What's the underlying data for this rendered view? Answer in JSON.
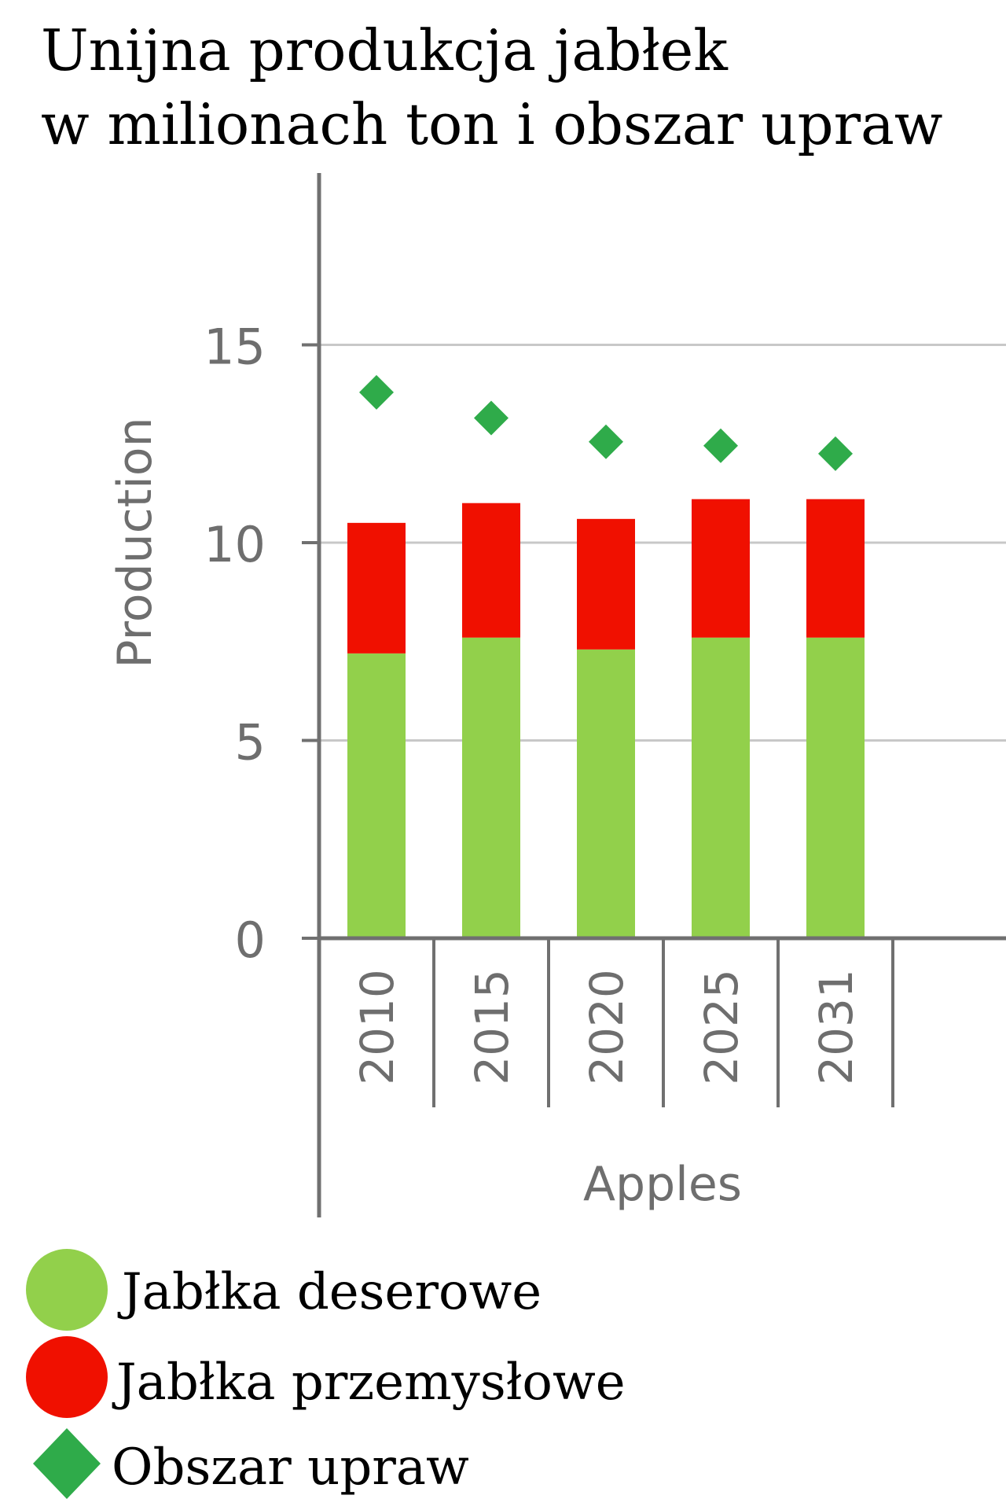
{
  "title_lines": [
    "Unijna produkcja jabłek",
    "w milionach ton i obszar upraw"
  ],
  "colors": {
    "dessert": "#92d04b",
    "industrial": "#f01000",
    "area": "#2fab4a",
    "axis": "#707070",
    "grid": "#c8c8c8",
    "tick_text": "#6e6e6e"
  },
  "chart_data": {
    "type": "bar",
    "stacked": true,
    "title": "Unijna produkcja jabłek w milionach ton i obszar upraw",
    "ylabel": "Production",
    "xlabel": "Apples",
    "categories": [
      "2010",
      "2015",
      "2020",
      "2025",
      "2031"
    ],
    "ylim": [
      0,
      19.5
    ],
    "yticks": [
      0,
      5,
      10,
      15
    ],
    "grid": true,
    "legend_position": "bottom",
    "series": [
      {
        "name": "Jabłka deserowe",
        "type": "bar",
        "color": "#92d04b",
        "values": [
          7.2,
          7.6,
          7.3,
          7.6,
          7.6
        ]
      },
      {
        "name": "Jabłka przemysłowe",
        "type": "bar",
        "color": "#f01000",
        "values": [
          3.3,
          3.4,
          3.3,
          3.5,
          3.5
        ]
      },
      {
        "name": "Obszar upraw",
        "type": "marker",
        "marker": "diamond",
        "color": "#2fab4a",
        "values": [
          13.8,
          13.15,
          12.55,
          12.45,
          12.25
        ]
      }
    ]
  },
  "legend": [
    {
      "label": "Jabłka deserowe",
      "marker": "circle",
      "color": "#92d04b"
    },
    {
      "label": "Jabłka przemysłowe",
      "marker": "circle",
      "color": "#f01000"
    },
    {
      "label": "Obszar upraw",
      "marker": "diamond",
      "color": "#2fab4a"
    }
  ]
}
